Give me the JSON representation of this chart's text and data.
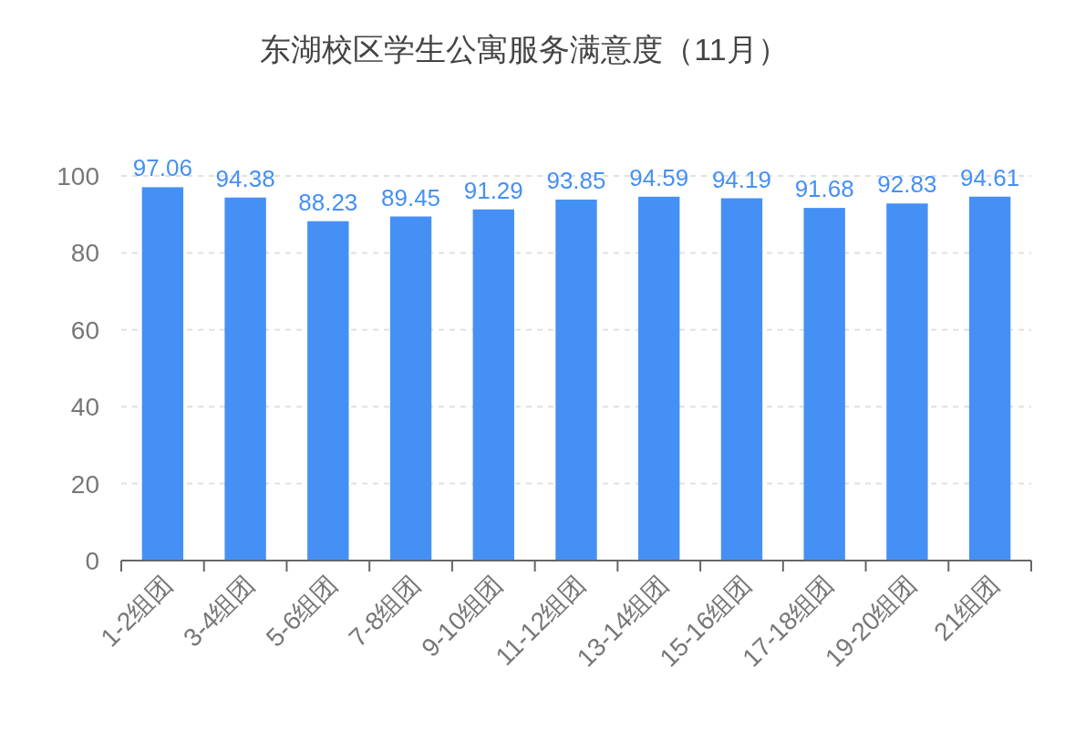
{
  "chart_data": {
    "type": "bar",
    "title": "东湖校区学生公寓服务满意度（11月）",
    "categories": [
      "1-2组团",
      "3-4组团",
      "5-6组团",
      "7-8组团",
      "9-10组团",
      "11-12组团",
      "13-14组团",
      "15-16组团",
      "17-18组团",
      "19-20组团",
      "21组团"
    ],
    "values": [
      97.06,
      94.38,
      88.23,
      89.45,
      91.29,
      93.85,
      94.59,
      94.19,
      91.68,
      92.83,
      94.61
    ],
    "color": "#4590f5",
    "ylim": [
      0,
      100
    ],
    "yticks": [
      0,
      20,
      40,
      60,
      80,
      100
    ],
    "grid": "y",
    "data_labels": true
  }
}
